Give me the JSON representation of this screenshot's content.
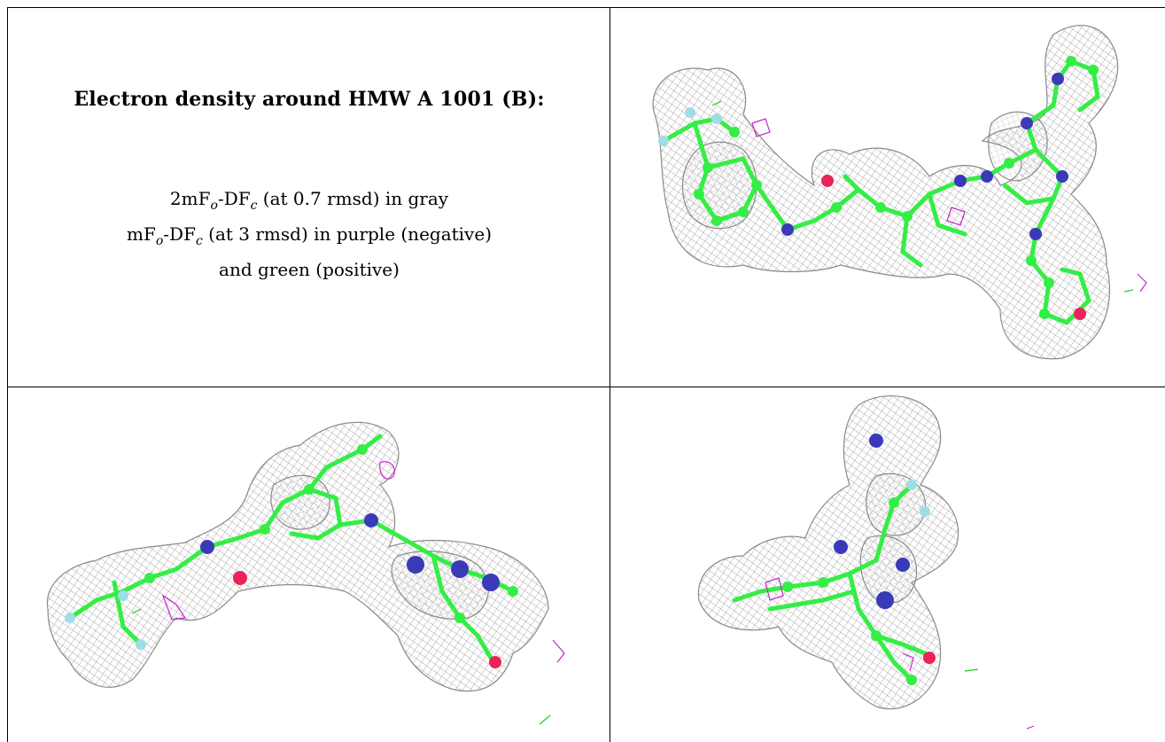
{
  "figure": {
    "title": "Electron density around HMW A 1001 (B):",
    "caption": {
      "line1": {
        "pre": "2mF",
        "sub1": "o",
        "mid": "-DF",
        "sub2": "c",
        "post": " (at 0.7 rmsd) in gray"
      },
      "line2": {
        "pre": "mF",
        "sub1": "o",
        "mid": "-DF",
        "sub2": "c",
        "post": " (at 3 rmsd) in purple (negative)"
      },
      "line3": "and green (positive)"
    }
  },
  "colors": {
    "mesh": "#9a9a9a",
    "carbon": "#33ee44",
    "nitrogen": "#3a3ab8",
    "oxygen": "#e8245a",
    "fluorine": "#9fdde6",
    "negative_density": "#cc22cc",
    "positive_density": "#22cc22"
  },
  "panels": [
    {
      "name": "view-top-right"
    },
    {
      "name": "view-bottom-left"
    },
    {
      "name": "view-bottom-right"
    }
  ]
}
